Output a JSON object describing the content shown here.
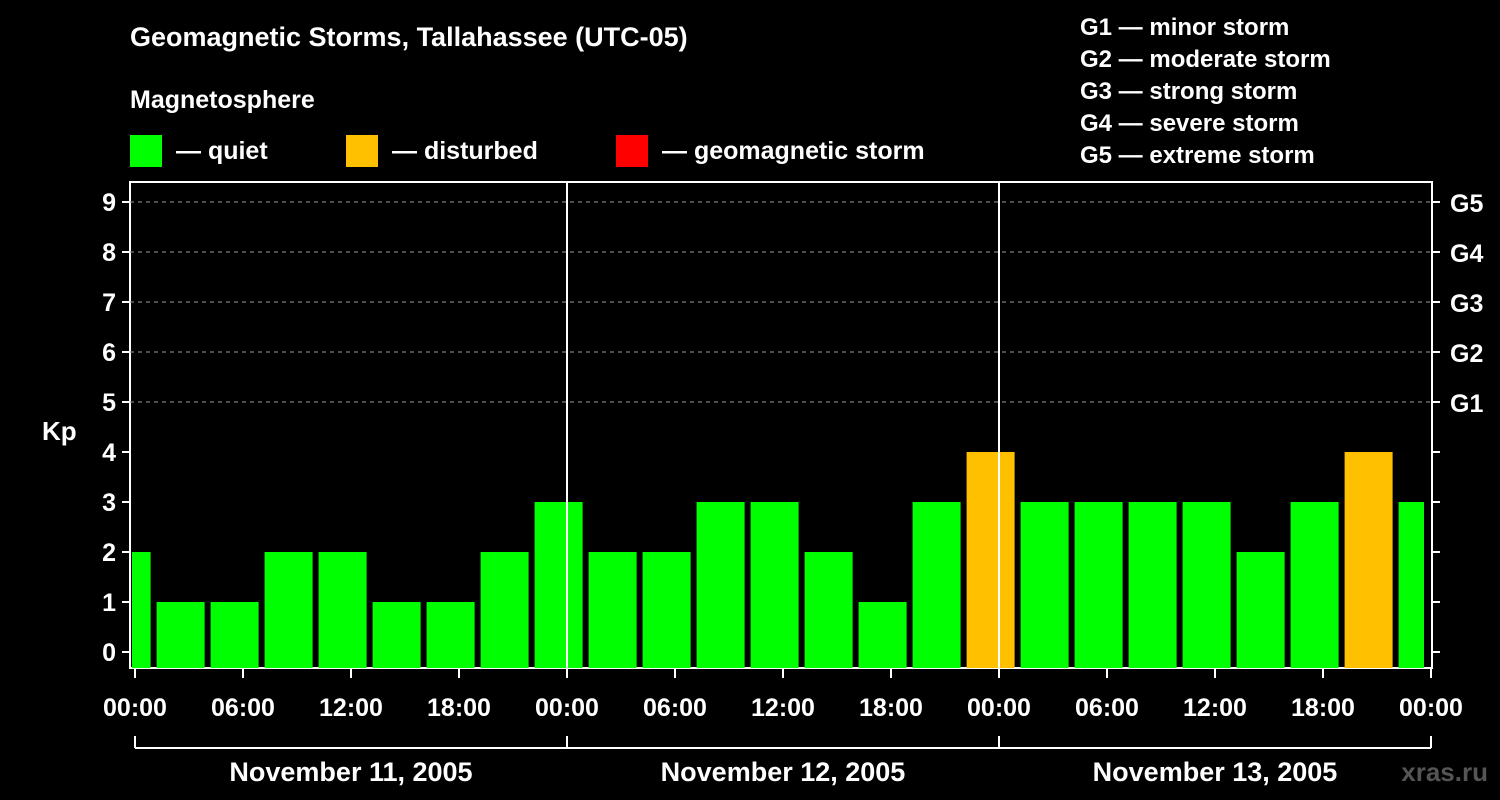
{
  "title": "Geomagnetic Storms, Tallahassee (UTC-05)",
  "subtitle": "Magnetosphere",
  "legend": [
    {
      "label": "— quiet",
      "color": "#00ff00"
    },
    {
      "label": "— disturbed",
      "color": "#ffc000"
    },
    {
      "label": "— geomagnetic storm",
      "color": "#ff0000"
    }
  ],
  "storm_scale": [
    "G1 — minor storm",
    "G2 — moderate storm",
    "G3 — strong storm",
    "G4 — severe storm",
    "G5 — extreme storm"
  ],
  "watermark": "xras.ru",
  "chart_data": {
    "type": "bar",
    "title": "Geomagnetic Storms, Tallahassee (UTC-05)",
    "ylabel": "Kp",
    "ylim": [
      0,
      9
    ],
    "yticks": [
      "0",
      "1",
      "2",
      "3",
      "4",
      "5",
      "6",
      "7",
      "8",
      "9"
    ],
    "right_ticks": [
      {
        "kp": 5,
        "label": "G1"
      },
      {
        "kp": 6,
        "label": "G2"
      },
      {
        "kp": 7,
        "label": "G3"
      },
      {
        "kp": 8,
        "label": "G4"
      },
      {
        "kp": 9,
        "label": "G5"
      }
    ],
    "grid": "dashed horizontal at Kp 5-9",
    "xticks": [
      "00:00",
      "06:00",
      "12:00",
      "18:00",
      "00:00",
      "06:00",
      "12:00",
      "18:00",
      "00:00",
      "06:00",
      "12:00",
      "18:00",
      "00:00"
    ],
    "days": [
      "November 11, 2005",
      "November 12, 2005",
      "November 13, 2005"
    ],
    "x_start_hour": -1.8,
    "x_end_hour": 72,
    "bar_hours": 3,
    "bars": [
      {
        "start_hour": -1.8,
        "kp": 2,
        "status": "quiet"
      },
      {
        "start_hour": 1.2,
        "kp": 1,
        "status": "quiet"
      },
      {
        "start_hour": 4.2,
        "kp": 1,
        "status": "quiet"
      },
      {
        "start_hour": 7.2,
        "kp": 2,
        "status": "quiet"
      },
      {
        "start_hour": 10.2,
        "kp": 2,
        "status": "quiet"
      },
      {
        "start_hour": 13.2,
        "kp": 1,
        "status": "quiet"
      },
      {
        "start_hour": 16.2,
        "kp": 1,
        "status": "quiet"
      },
      {
        "start_hour": 19.2,
        "kp": 2,
        "status": "quiet"
      },
      {
        "start_hour": 22.2,
        "kp": 3,
        "status": "quiet"
      },
      {
        "start_hour": 25.2,
        "kp": 2,
        "status": "quiet"
      },
      {
        "start_hour": 28.2,
        "kp": 2,
        "status": "quiet"
      },
      {
        "start_hour": 31.2,
        "kp": 3,
        "status": "quiet"
      },
      {
        "start_hour": 34.2,
        "kp": 3,
        "status": "quiet"
      },
      {
        "start_hour": 37.2,
        "kp": 2,
        "status": "quiet"
      },
      {
        "start_hour": 40.2,
        "kp": 1,
        "status": "quiet"
      },
      {
        "start_hour": 43.2,
        "kp": 3,
        "status": "quiet"
      },
      {
        "start_hour": 46.2,
        "kp": 4,
        "status": "disturbed"
      },
      {
        "start_hour": 49.2,
        "kp": 3,
        "status": "quiet"
      },
      {
        "start_hour": 52.2,
        "kp": 3,
        "status": "quiet"
      },
      {
        "start_hour": 55.2,
        "kp": 3,
        "status": "quiet"
      },
      {
        "start_hour": 58.2,
        "kp": 3,
        "status": "quiet"
      },
      {
        "start_hour": 61.2,
        "kp": 2,
        "status": "quiet"
      },
      {
        "start_hour": 64.2,
        "kp": 3,
        "status": "quiet"
      },
      {
        "start_hour": 67.2,
        "kp": 4,
        "status": "disturbed"
      },
      {
        "start_hour": 70.2,
        "kp": 3,
        "status": "quiet"
      }
    ],
    "colors": {
      "quiet": "#00ff00",
      "disturbed": "#ffc000",
      "storm": "#ff0000"
    }
  }
}
